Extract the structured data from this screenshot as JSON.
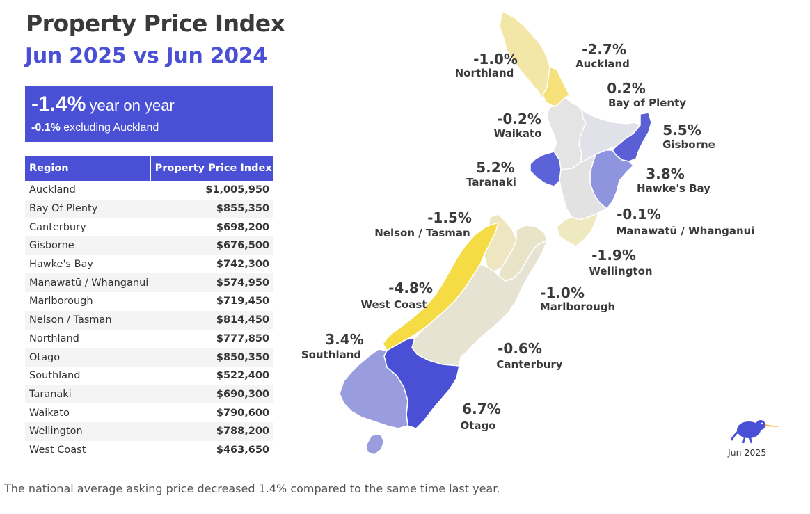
{
  "header": {
    "title": "Property Price Index",
    "subtitle": "Jun 2025 vs Jun 2024"
  },
  "summary": {
    "pct": "-1.4%",
    "pct_text": "year on year",
    "sub_pct": "-0.1%",
    "sub_text": "excluding Auckland"
  },
  "table": {
    "columns": [
      "Region",
      "Property Price Index"
    ],
    "rows": [
      {
        "region": "Auckland",
        "value": "$1,005,950"
      },
      {
        "region": "Bay Of Plenty",
        "value": "$855,350"
      },
      {
        "region": "Canterbury",
        "value": "$698,200"
      },
      {
        "region": "Gisborne",
        "value": "$676,500"
      },
      {
        "region": "Hawke's Bay",
        "value": "$742,300"
      },
      {
        "region": "Manawatū / Whanganui",
        "value": "$574,950"
      },
      {
        "region": "Marlborough",
        "value": "$719,450"
      },
      {
        "region": "Nelson / Tasman",
        "value": "$814,450"
      },
      {
        "region": "Northland",
        "value": "$777,850"
      },
      {
        "region": "Otago",
        "value": "$850,350"
      },
      {
        "region": "Southland",
        "value": "$522,400"
      },
      {
        "region": "Taranaki",
        "value": "$690,300"
      },
      {
        "region": "Waikato",
        "value": "$790,600"
      },
      {
        "region": "Wellington",
        "value": "$788,200"
      },
      {
        "region": "West Coast",
        "value": "$463,650"
      }
    ]
  },
  "map": {
    "regions": [
      {
        "name": "Northland",
        "change": "-1.0%",
        "color": "#f2e7a6"
      },
      {
        "name": "Auckland",
        "change": "-2.7%",
        "color": "#f5e079"
      },
      {
        "name": "Waikato",
        "change": "-0.2%",
        "color": "#e4e4e4"
      },
      {
        "name": "Bay of Plenty",
        "change": "0.2%",
        "color": "#e1e1ea"
      },
      {
        "name": "Gisborne",
        "change": "5.5%",
        "color": "#5a5fd6"
      },
      {
        "name": "Taranaki",
        "change": "5.2%",
        "color": "#5c62d8"
      },
      {
        "name": "Hawke's Bay",
        "change": "3.8%",
        "color": "#8e94de"
      },
      {
        "name": "Manawatū / Whanganui",
        "change": "-0.1%",
        "color": "#e2e2e2"
      },
      {
        "name": "Wellington",
        "change": "-1.9%",
        "color": "#efe9bf"
      },
      {
        "name": "Nelson / Tasman",
        "change": "-1.5%",
        "color": "#ede6c0"
      },
      {
        "name": "Marlborough",
        "change": "-1.0%",
        "color": "#e9e4c8"
      },
      {
        "name": "West Coast",
        "change": "-4.8%",
        "color": "#f5dc44"
      },
      {
        "name": "Canterbury",
        "change": "-0.6%",
        "color": "#e6e3d2"
      },
      {
        "name": "Southland",
        "change": "3.4%",
        "color": "#9a9ddd"
      },
      {
        "name": "Otago",
        "change": "6.7%",
        "color": "#4a50d6"
      }
    ]
  },
  "badge": {
    "date": "Jun 2025",
    "kiwi_icon": "kiwi-bird-icon"
  },
  "caption": "The national average asking price decreased 1.4% compared to the same time last year."
}
